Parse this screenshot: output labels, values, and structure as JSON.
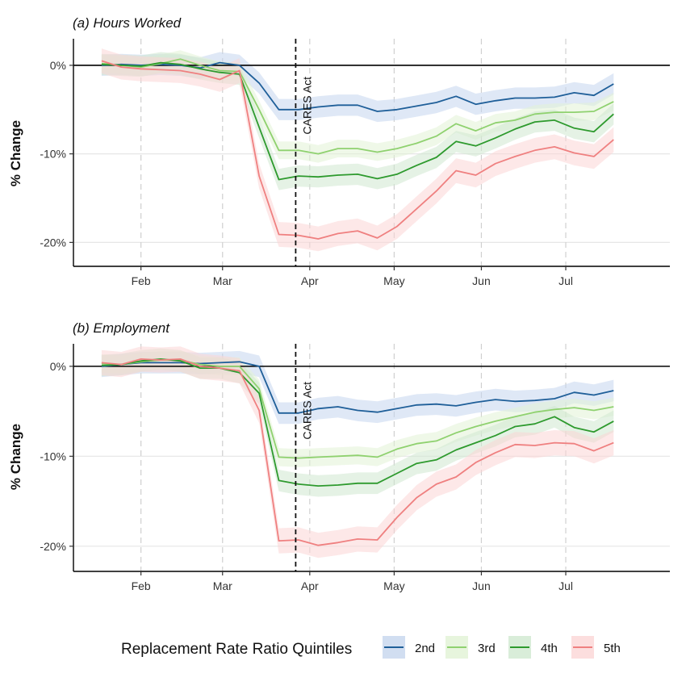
{
  "legend": {
    "title": "Replacement Rate Ratio Quintiles",
    "items": [
      {
        "name": "2nd",
        "line": "#1f5f99",
        "ribbon": "#c5d6ee"
      },
      {
        "name": "3rd",
        "line": "#8fd16f",
        "ribbon": "#e1f3d5"
      },
      {
        "name": "4th",
        "line": "#2e9a2e",
        "ribbon": "#cfe8cf"
      },
      {
        "name": "5th",
        "line": "#ef8080",
        "ribbon": "#fbd6d6"
      }
    ]
  },
  "chart_data": [
    {
      "type": "line",
      "title": "(a) Hours Worked",
      "ylabel": "% Change",
      "xlabel": "",
      "xlim": [
        "2020-01-08",
        "2020-08-07"
      ],
      "ylim": [
        -22.7,
        3
      ],
      "x_ticks": [
        {
          "date": "2020-02-01",
          "label": "Feb"
        },
        {
          "date": "2020-03-01",
          "label": "Mar"
        },
        {
          "date": "2020-04-01",
          "label": "Apr"
        },
        {
          "date": "2020-05-01",
          "label": "May"
        },
        {
          "date": "2020-06-01",
          "label": "Jun"
        },
        {
          "date": "2020-07-01",
          "label": "Jul"
        }
      ],
      "y_ticks": [
        0,
        -10,
        -20
      ],
      "y_tick_labels": [
        "0%",
        "-10%",
        "-20%"
      ],
      "hline": 0,
      "vline": {
        "date": "2020-03-27",
        "label": "CARES Act"
      },
      "dates": [
        "2020-01-18",
        "2020-01-25",
        "2020-02-01",
        "2020-02-08",
        "2020-02-15",
        "2020-02-22",
        "2020-02-29",
        "2020-03-07",
        "2020-03-14",
        "2020-03-21",
        "2020-03-28",
        "2020-04-04",
        "2020-04-11",
        "2020-04-18",
        "2020-04-25",
        "2020-05-02",
        "2020-05-09",
        "2020-05-16",
        "2020-05-23",
        "2020-05-30",
        "2020-06-06",
        "2020-06-13",
        "2020-06-20",
        "2020-06-27",
        "2020-07-04",
        "2020-07-11",
        "2020-07-18"
      ],
      "series": [
        {
          "name": "2nd",
          "ribbon": 1.2,
          "values": [
            0.0,
            0.1,
            0.0,
            0.1,
            0.0,
            -0.3,
            0.3,
            0.0,
            -2.0,
            -5.0,
            -5.0,
            -4.7,
            -4.5,
            -4.5,
            -5.2,
            -5.0,
            -4.6,
            -4.2,
            -3.5,
            -4.4,
            -4.0,
            -3.7,
            -3.7,
            -3.6,
            -3.1,
            -3.4,
            -2.1
          ]
        },
        {
          "name": "3rd",
          "ribbon": 1.0,
          "values": [
            0.2,
            0.0,
            -0.2,
            0.2,
            0.7,
            0.0,
            -0.6,
            -0.7,
            -5.0,
            -9.6,
            -9.6,
            -10.0,
            -9.4,
            -9.4,
            -9.8,
            -9.4,
            -8.8,
            -8.0,
            -6.6,
            -7.4,
            -6.5,
            -6.2,
            -5.5,
            -5.3,
            -5.3,
            -5.2,
            -4.1
          ]
        },
        {
          "name": "4th",
          "ribbon": 1.2,
          "values": [
            0.1,
            0.0,
            -0.1,
            0.3,
            0.1,
            -0.4,
            -0.8,
            -1.0,
            -7.0,
            -12.9,
            -12.5,
            -12.6,
            -12.4,
            -12.3,
            -12.8,
            -12.3,
            -11.3,
            -10.4,
            -8.6,
            -9.1,
            -8.2,
            -7.2,
            -6.4,
            -6.2,
            -7.1,
            -7.5,
            -5.5
          ]
        },
        {
          "name": "5th",
          "ribbon": 1.4,
          "values": [
            0.5,
            -0.2,
            -0.4,
            -0.5,
            -0.6,
            -1.0,
            -1.6,
            -0.6,
            -12.5,
            -19.1,
            -19.2,
            -19.6,
            -19.0,
            -18.7,
            -19.5,
            -18.2,
            -16.2,
            -14.2,
            -11.9,
            -12.4,
            -11.1,
            -10.3,
            -9.6,
            -9.2,
            -9.9,
            -10.3,
            -8.4
          ]
        }
      ]
    },
    {
      "type": "line",
      "title": "(b) Employment",
      "ylabel": "% Change",
      "xlabel": "",
      "xlim": [
        "2020-01-08",
        "2020-08-07"
      ],
      "ylim": [
        -22.8,
        2.5
      ],
      "x_ticks": [
        {
          "date": "2020-02-01",
          "label": "Feb"
        },
        {
          "date": "2020-03-01",
          "label": "Mar"
        },
        {
          "date": "2020-04-01",
          "label": "Apr"
        },
        {
          "date": "2020-05-01",
          "label": "May"
        },
        {
          "date": "2020-06-01",
          "label": "Jun"
        },
        {
          "date": "2020-07-01",
          "label": "Jul"
        }
      ],
      "y_ticks": [
        0,
        -10,
        -20
      ],
      "y_tick_labels": [
        "0%",
        "-10%",
        "-20%"
      ],
      "hline": 0,
      "vline": {
        "date": "2020-03-27",
        "label": "CARES Act"
      },
      "dates": [
        "2020-01-18",
        "2020-01-25",
        "2020-02-01",
        "2020-02-08",
        "2020-02-15",
        "2020-02-22",
        "2020-02-29",
        "2020-03-07",
        "2020-03-14",
        "2020-03-21",
        "2020-03-28",
        "2020-04-04",
        "2020-04-11",
        "2020-04-18",
        "2020-04-25",
        "2020-05-02",
        "2020-05-09",
        "2020-05-16",
        "2020-05-23",
        "2020-05-30",
        "2020-06-06",
        "2020-06-13",
        "2020-06-20",
        "2020-06-27",
        "2020-07-04",
        "2020-07-11",
        "2020-07-18"
      ],
      "series": [
        {
          "name": "2nd",
          "ribbon": 1.2,
          "values": [
            0.0,
            0.2,
            0.4,
            0.4,
            0.4,
            0.3,
            0.4,
            0.5,
            0.0,
            -5.2,
            -5.2,
            -4.7,
            -4.5,
            -4.9,
            -5.1,
            -4.7,
            -4.3,
            -4.2,
            -4.4,
            -4.0,
            -3.7,
            -3.9,
            -3.8,
            -3.6,
            -2.9,
            -3.2,
            -2.7
          ]
        },
        {
          "name": "3rd",
          "ribbon": 1.0,
          "values": [
            0.3,
            0.2,
            0.5,
            0.7,
            0.7,
            0.2,
            0.0,
            0.0,
            -2.5,
            -10.1,
            -10.2,
            -10.1,
            -10.0,
            -9.9,
            -10.1,
            -9.2,
            -8.6,
            -8.3,
            -7.4,
            -6.7,
            -6.1,
            -5.6,
            -5.1,
            -4.8,
            -4.6,
            -4.9,
            -4.5
          ]
        },
        {
          "name": "4th",
          "ribbon": 1.2,
          "values": [
            0.1,
            0.2,
            0.6,
            0.8,
            0.6,
            -0.2,
            -0.2,
            -0.7,
            -3.0,
            -12.7,
            -13.1,
            -13.3,
            -13.2,
            -13.0,
            -13.0,
            -11.9,
            -10.8,
            -10.4,
            -9.3,
            -8.5,
            -7.7,
            -6.7,
            -6.4,
            -5.6,
            -6.8,
            -7.3,
            -6.1
          ]
        },
        {
          "name": "5th",
          "ribbon": 1.4,
          "values": [
            0.4,
            0.2,
            0.8,
            0.7,
            0.8,
            0.0,
            -0.2,
            -0.5,
            -4.9,
            -19.4,
            -19.3,
            -19.9,
            -19.6,
            -19.2,
            -19.3,
            -16.8,
            -14.6,
            -13.1,
            -12.3,
            -10.7,
            -9.6,
            -8.7,
            -8.8,
            -8.5,
            -8.6,
            -9.4,
            -8.5
          ]
        }
      ]
    }
  ]
}
